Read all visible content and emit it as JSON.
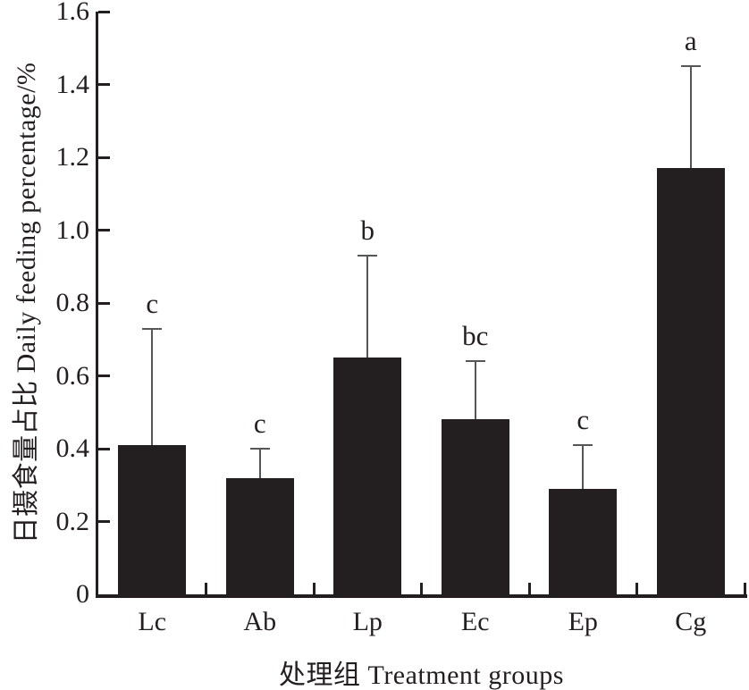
{
  "chart_data": {
    "type": "bar",
    "title": "",
    "xlabel": "处理组 Treatment groups",
    "ylabel": "日摄食量占比 Daily feeding percentage/%",
    "categories": [
      "Lc",
      "Ab",
      "Lp",
      "Ec",
      "Ep",
      "Cg"
    ],
    "values": [
      0.41,
      0.32,
      0.65,
      0.48,
      0.29,
      1.17
    ],
    "error_upper": [
      0.32,
      0.08,
      0.28,
      0.16,
      0.12,
      0.28
    ],
    "error_tops": [
      0.73,
      0.4,
      0.93,
      0.64,
      0.41,
      1.45
    ],
    "sig_letters": [
      "c",
      "c",
      "b",
      "bc",
      "c",
      "a"
    ],
    "ylim": [
      0,
      1.6
    ],
    "ytick_step": 0.2,
    "yticks": [
      "0",
      "0.2",
      "0.4",
      "0.6",
      "0.8",
      "1.0",
      "1.2",
      "1.4",
      "1.6"
    ],
    "grid": false,
    "legend": false,
    "bar_color": "#231f20",
    "axis_color": "#231f20",
    "error_bar_color": "#55565a",
    "text_color": "#231f20",
    "background_color": "#ffffff"
  }
}
